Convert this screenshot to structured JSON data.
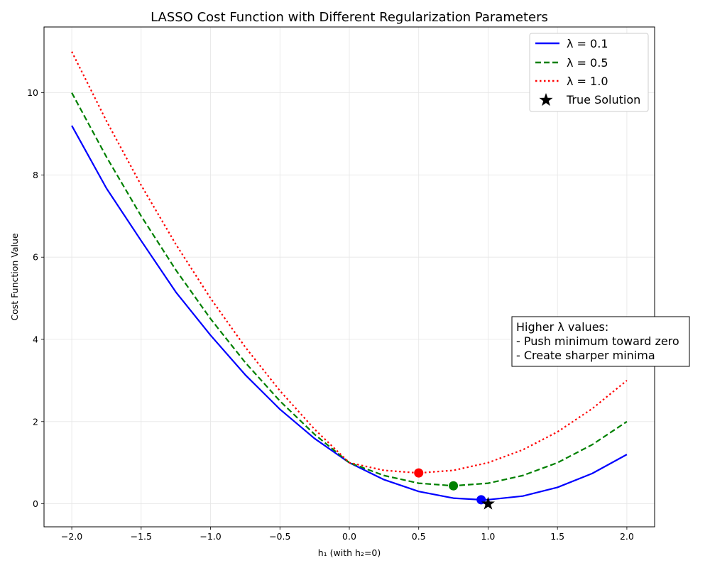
{
  "chart_data": {
    "type": "line",
    "title": "LASSO Cost Function with Different Regularization Parameters",
    "xlabel": "h₁ (with h₂=0)",
    "ylabel": "Cost Function Value",
    "xlim": [
      -2.2,
      2.2
    ],
    "ylim": [
      -0.56,
      11.6
    ],
    "xticks": [
      -2.0,
      -1.5,
      -1.0,
      -0.5,
      0.0,
      0.5,
      1.0,
      1.5,
      2.0
    ],
    "xtick_labels": [
      "−2.0",
      "−1.5",
      "−1.0",
      "−0.5",
      "0.0",
      "0.5",
      "1.0",
      "1.5",
      "2.0"
    ],
    "yticks": [
      0,
      2,
      4,
      6,
      8,
      10
    ],
    "ytick_labels": [
      "0",
      "2",
      "4",
      "6",
      "8",
      "10"
    ],
    "grid": true,
    "legend_position": "top-right",
    "series": [
      {
        "name": "λ = 0.1",
        "color": "#0000ff",
        "style": "solid",
        "x": [
          -2.0,
          -1.75,
          -1.5,
          -1.25,
          -1.0,
          -0.75,
          -0.5,
          -0.25,
          0.0,
          0.25,
          0.5,
          0.75,
          0.95,
          1.0,
          1.25,
          1.5,
          1.75,
          2.0
        ],
        "y": [
          9.2,
          7.675,
          6.4,
          5.15,
          4.1,
          3.138,
          2.3,
          1.587,
          1.0,
          0.587,
          0.3,
          0.138,
          0.098,
          0.1,
          0.188,
          0.4,
          0.738,
          1.2
        ],
        "minimum": {
          "x": 0.95,
          "y": 0.098
        }
      },
      {
        "name": "λ = 0.5",
        "color": "#008000",
        "style": "dashed",
        "x": [
          -2.0,
          -1.75,
          -1.5,
          -1.25,
          -1.0,
          -0.75,
          -0.5,
          -0.25,
          0.0,
          0.25,
          0.5,
          0.75,
          1.0,
          1.25,
          1.5,
          1.75,
          2.0
        ],
        "y": [
          10.0,
          8.438,
          7.0,
          5.688,
          4.5,
          3.438,
          2.5,
          1.688,
          1.0,
          0.688,
          0.5,
          0.438,
          0.5,
          0.688,
          1.0,
          1.438,
          2.0
        ],
        "minimum": {
          "x": 0.75,
          "y": 0.438
        }
      },
      {
        "name": "λ = 1.0",
        "color": "#ff0000",
        "style": "dotted",
        "x": [
          -2.0,
          -1.75,
          -1.5,
          -1.25,
          -1.0,
          -0.75,
          -0.5,
          -0.25,
          0.0,
          0.25,
          0.5,
          0.75,
          1.0,
          1.25,
          1.5,
          1.75,
          2.0
        ],
        "y": [
          11.0,
          9.313,
          7.75,
          6.313,
          5.0,
          3.813,
          2.75,
          1.813,
          1.0,
          0.813,
          0.75,
          0.813,
          1.0,
          1.313,
          1.75,
          2.313,
          3.0
        ],
        "minimum": {
          "x": 0.5,
          "y": 0.75
        }
      }
    ],
    "true_solution": {
      "name": "True Solution",
      "x": 1.0,
      "y": 0.0,
      "marker": "star",
      "color": "#000000"
    },
    "annotation": {
      "lines": [
        "Higher λ values:",
        "- Push minimum toward zero",
        "- Create sharper minima"
      ],
      "x": 1.2,
      "y": 4.0
    }
  }
}
